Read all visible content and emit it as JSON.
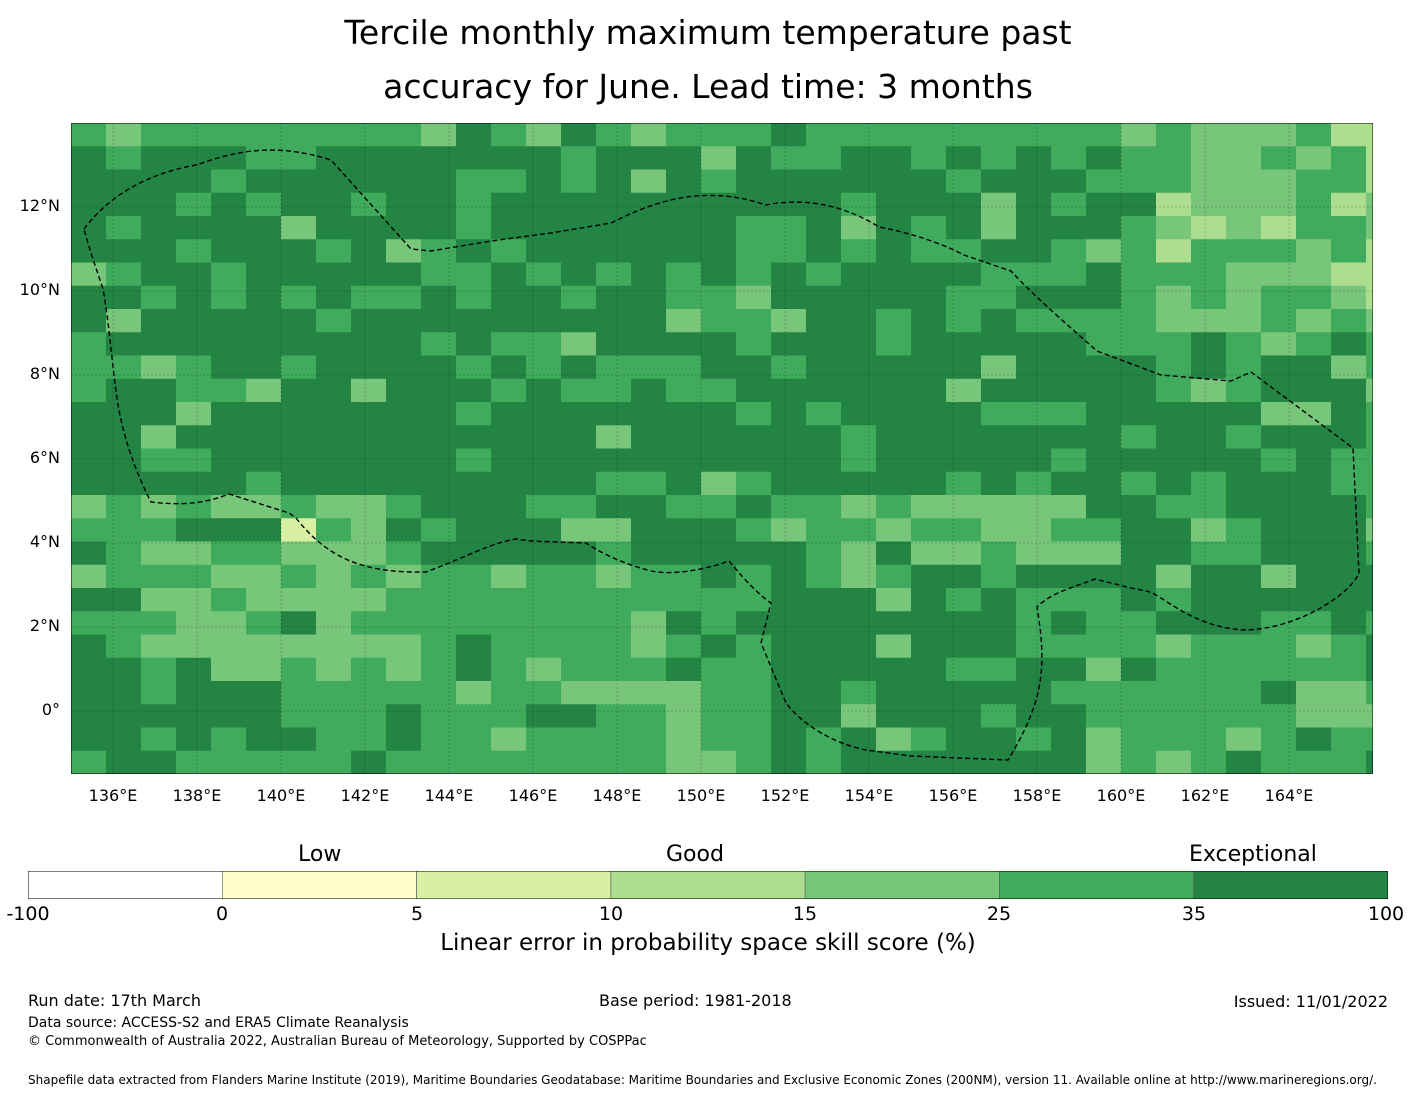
{
  "title_line1": "Tercile monthly maximum temperature past",
  "title_line2": "accuracy for June. Lead time: 3 months",
  "lat_labels": [
    "12°N",
    "10°N",
    "8°N",
    "6°N",
    "4°N",
    "2°N",
    "0°"
  ],
  "lon_labels": [
    "136°E",
    "138°E",
    "140°E",
    "142°E",
    "144°E",
    "146°E",
    "148°E",
    "150°E",
    "152°E",
    "154°E",
    "156°E",
    "158°E",
    "160°E",
    "162°E",
    "164°E"
  ],
  "colorbar": {
    "categories": [
      "Low",
      "Good",
      "Exceptional"
    ],
    "tick_labels": [
      "-100",
      "0",
      "5",
      "10",
      "15",
      "25",
      "35",
      "100"
    ],
    "colors": [
      "#ffffff",
      "#ffffcc",
      "#d9f0a3",
      "#addd8e",
      "#78c679",
      "#41ab5d",
      "#238443"
    ],
    "label": "Linear error in probability space skill score (%)"
  },
  "footer": {
    "run_date": "Run date: 17th March",
    "base_period": "Base period: 1981-2018",
    "issued": "Issued: 11/01/2022",
    "data_source": "Data source: ACCESS-S2 and ERA5 Climate Reanalysis",
    "copyright": "© Commonwealth of Australia 2022, Australian Bureau of Meteorology, Supported by COSPPac",
    "shapefile": "Shapefile data extracted from Flanders Marine Institute (2019), Maritime Boundaries Geodatabase: Maritime Boundaries and Exclusive Economic Zones (200NM), version 11. Available online at http://www.marineregions.org/."
  }
}
